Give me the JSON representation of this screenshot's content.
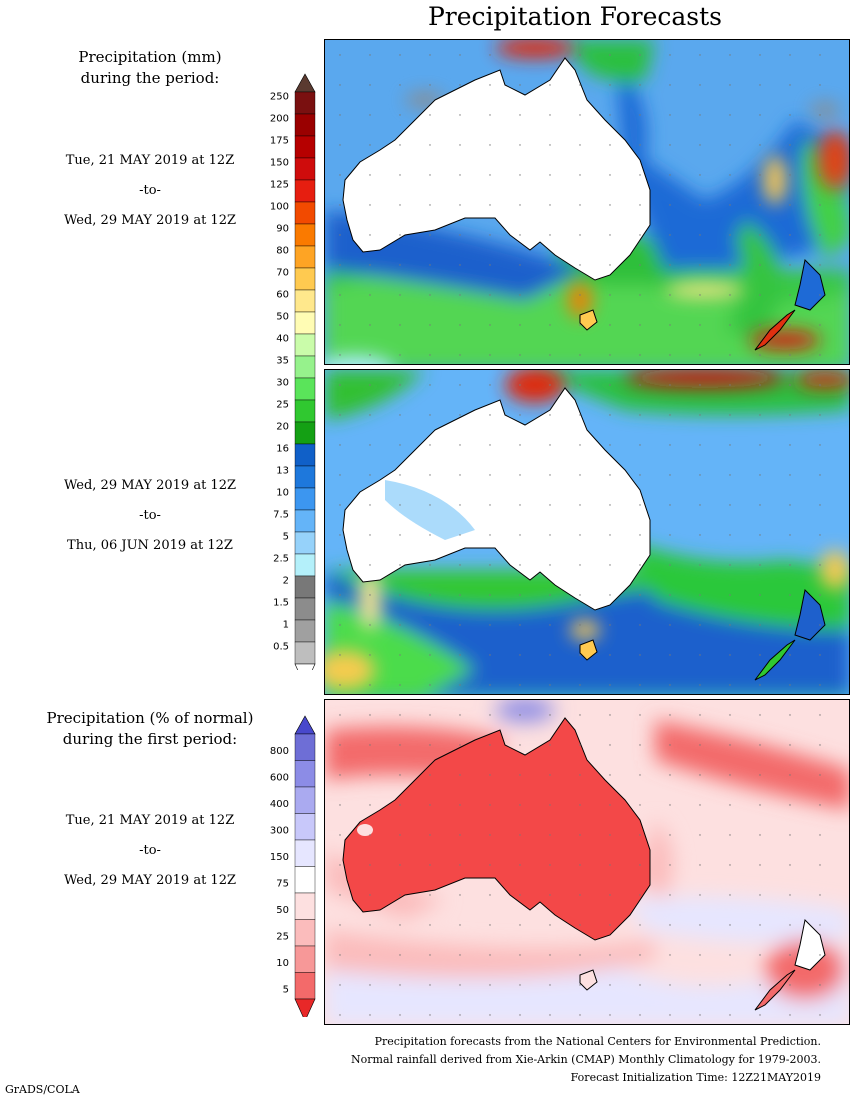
{
  "title": "Precipitation Forecasts",
  "panel1": {
    "heading_line1": "Precipitation (mm)",
    "heading_line2": "during the period:",
    "start": "Tue, 21 MAY 2019 at 12Z",
    "to": "-to-",
    "end": "Wed, 29 MAY 2019 at 12Z"
  },
  "panel2": {
    "start": "Wed, 29 MAY 2019 at 12Z",
    "to": "-to-",
    "end": "Thu, 06 JUN 2019 at 12Z"
  },
  "panel3": {
    "heading_line1": "Precipitation (% of normal)",
    "heading_line2": "during the first period:",
    "start": "Tue, 21 MAY 2019 at 12Z",
    "to": "-to-",
    "end": "Wed, 29 MAY 2019 at 12Z"
  },
  "precip_scale": {
    "labels": [
      "250",
      "200",
      "175",
      "150",
      "125",
      "100",
      "90",
      "80",
      "70",
      "60",
      "50",
      "40",
      "35",
      "30",
      "25",
      "20",
      "16",
      "13",
      "10",
      "7.5",
      "5",
      "2.5",
      "2",
      "1.5",
      "1",
      "0.5"
    ],
    "colors": [
      "#7a1010",
      "#9a0000",
      "#b60000",
      "#cf0c0c",
      "#e61e10",
      "#f24a00",
      "#fa7a00",
      "#fea424",
      "#ffca50",
      "#ffe88c",
      "#fffcb4",
      "#cafcaa",
      "#96f28c",
      "#5ae45a",
      "#30c830",
      "#14a014",
      "#1060c8",
      "#1e78dc",
      "#3c96f0",
      "#64b4f8",
      "#96d2fa",
      "#b4f0fa",
      "#787878",
      "#8c8c8c",
      "#a0a0a0",
      "#bebebe"
    ],
    "top_cap_color": "#5a3a30"
  },
  "pct_scale": {
    "labels": [
      "800",
      "600",
      "400",
      "300",
      "150",
      "75",
      "50",
      "25",
      "10",
      "5"
    ],
    "colors": [
      "#6e6ed6",
      "#8c8ce6",
      "#aaaaf0",
      "#c8c8fa",
      "#e6e6ff",
      "#ffffff",
      "#fde0e0",
      "#fbbcbc",
      "#f79898",
      "#f36a6a"
    ],
    "top_cap_color": "#4848cc",
    "bottom_cap_color": "#e82828"
  },
  "credits": {
    "line1": "Precipitation forecasts from the National Centers for Environmental Prediction.",
    "line2": "Normal rainfall derived from Xie-Arkin (CMAP) Monthly Climatology for 1979-2003.",
    "line3": "Forecast Initialization Time: 12Z21MAY2019"
  },
  "software": "GrADS/COLA"
}
